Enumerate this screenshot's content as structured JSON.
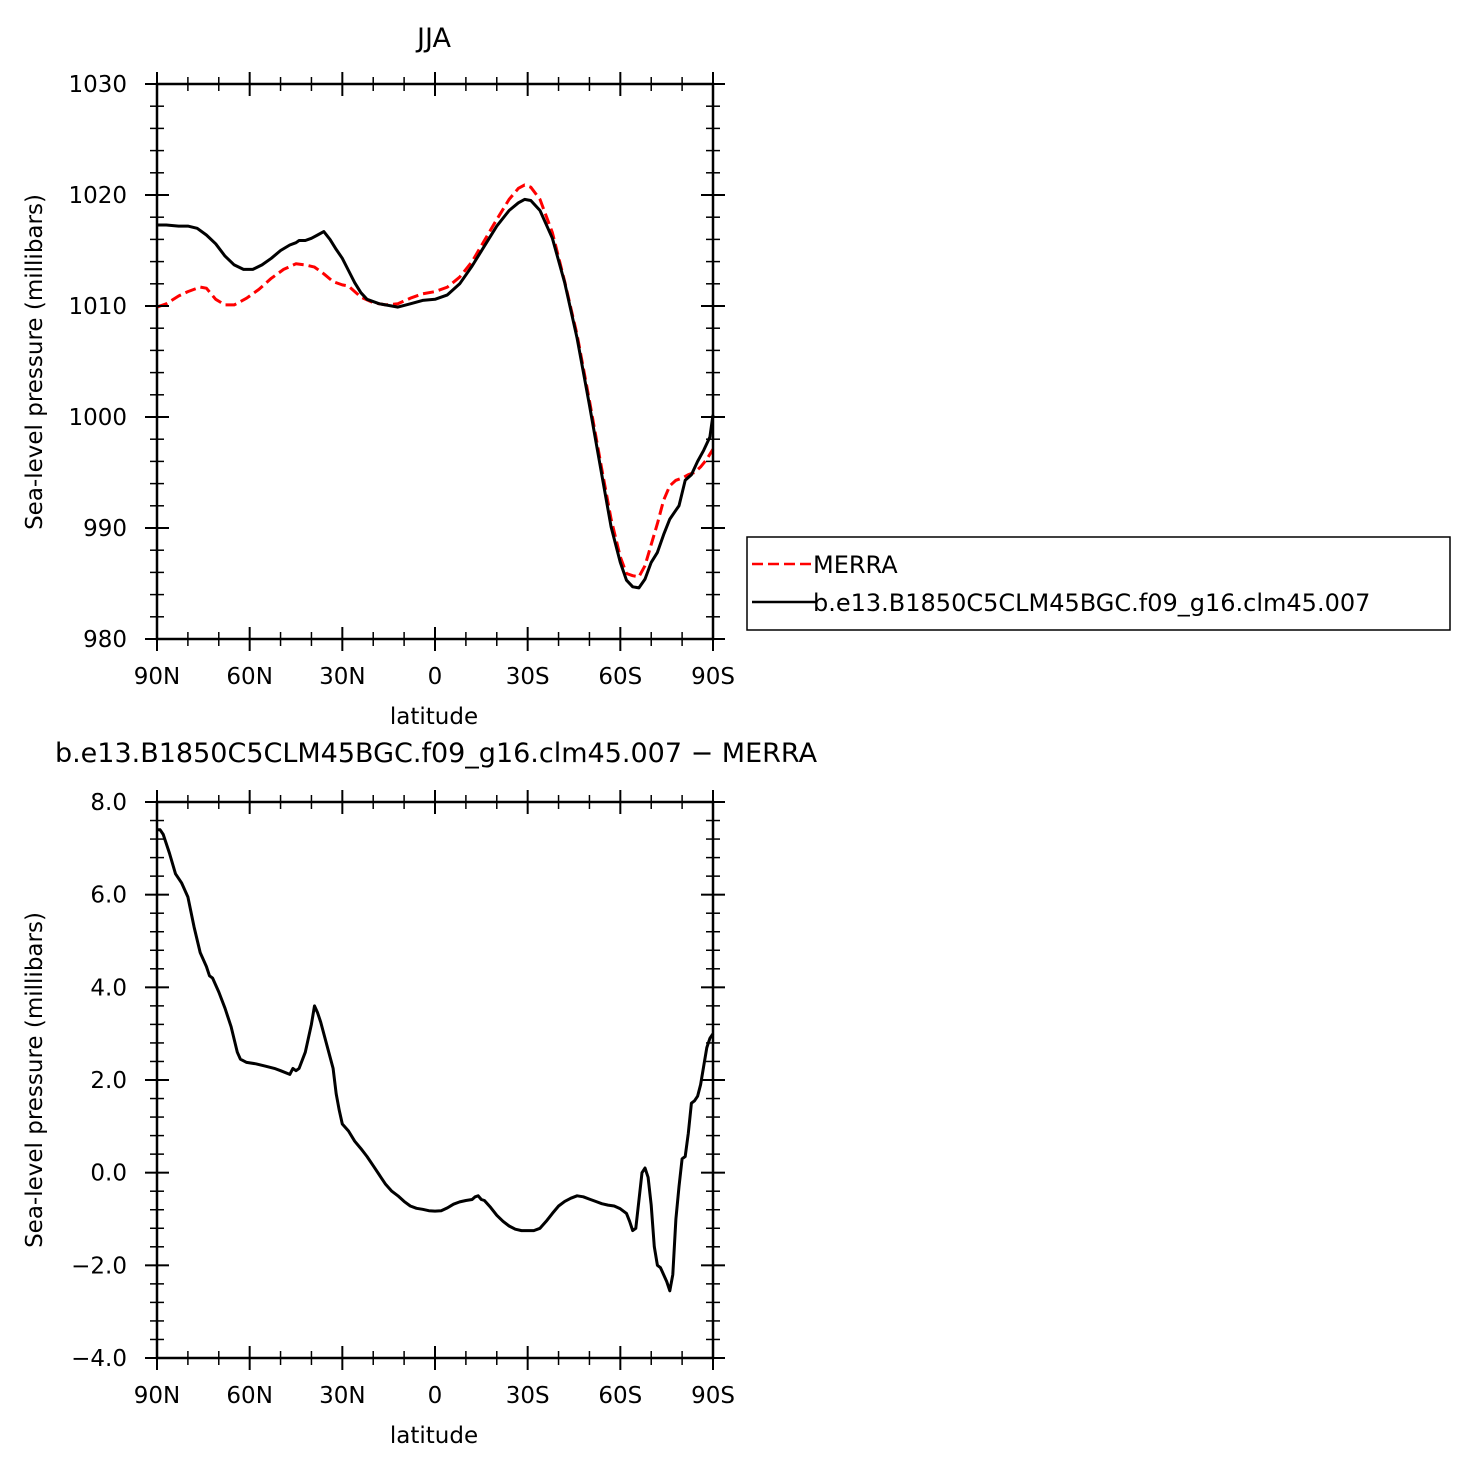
{
  "chart_data": [
    {
      "type": "line",
      "title": "JJA",
      "xlabel": "latitude",
      "ylabel": "Sea-level pressure (millibars)",
      "xlim": [
        90,
        -90
      ],
      "ylim": [
        980,
        1030
      ],
      "x_ticks": [
        {
          "value": 90,
          "label": "90N"
        },
        {
          "value": 60,
          "label": "60N"
        },
        {
          "value": 30,
          "label": "30N"
        },
        {
          "value": 0,
          "label": "0"
        },
        {
          "value": -30,
          "label": "30S"
        },
        {
          "value": -60,
          "label": "60S"
        },
        {
          "value": -90,
          "label": "90S"
        }
      ],
      "y_ticks": [
        {
          "value": 1030,
          "label": "1030"
        },
        {
          "value": 1020,
          "label": "1020"
        },
        {
          "value": 1010,
          "label": "1010"
        },
        {
          "value": 1000,
          "label": "1000"
        },
        {
          "value": 990,
          "label": "990"
        },
        {
          "value": 980,
          "label": "980"
        }
      ],
      "legend": "right",
      "series": [
        {
          "name": "MERRA",
          "color": "#ff0000",
          "dash": "dashed",
          "points": [
            [
              90,
              1009.9
            ],
            [
              87,
              1010.2
            ],
            [
              83,
              1010.9
            ],
            [
              80,
              1011.3
            ],
            [
              76,
              1011.7
            ],
            [
              74,
              1011.6
            ],
            [
              71,
              1010.6
            ],
            [
              68,
              1010.1
            ],
            [
              65,
              1010.1
            ],
            [
              61,
              1010.7
            ],
            [
              57,
              1011.5
            ],
            [
              53,
              1012.5
            ],
            [
              49,
              1013.3
            ],
            [
              45,
              1013.8
            ],
            [
              42,
              1013.7
            ],
            [
              39,
              1013.5
            ],
            [
              36,
              1012.9
            ],
            [
              33,
              1012.2
            ],
            [
              30,
              1011.9
            ],
            [
              28,
              1011.8
            ],
            [
              24,
              1010.8
            ],
            [
              20,
              1010.3
            ],
            [
              16,
              1010.1
            ],
            [
              12,
              1010.2
            ],
            [
              8,
              1010.7
            ],
            [
              4,
              1011.1
            ],
            [
              0,
              1011.3
            ],
            [
              -4,
              1011.7
            ],
            [
              -8,
              1012.6
            ],
            [
              -12,
              1014.0
            ],
            [
              -16,
              1015.9
            ],
            [
              -20,
              1017.8
            ],
            [
              -24,
              1019.6
            ],
            [
              -27,
              1020.6
            ],
            [
              -29,
              1020.9
            ],
            [
              -31,
              1020.7
            ],
            [
              -34,
              1019.6
            ],
            [
              -38,
              1016.6
            ],
            [
              -42,
              1012.2
            ],
            [
              -46,
              1007.4
            ],
            [
              -50,
              1001.5
            ],
            [
              -54,
              995.3
            ],
            [
              -57,
              990.8
            ],
            [
              -60,
              987.4
            ],
            [
              -62,
              985.9
            ],
            [
              -64,
              985.7
            ],
            [
              -66,
              985.6
            ],
            [
              -68,
              986.6
            ],
            [
              -70,
              988.5
            ],
            [
              -72,
              990.4
            ],
            [
              -74,
              992.5
            ],
            [
              -76,
              993.8
            ],
            [
              -78,
              994.3
            ],
            [
              -80,
              994.5
            ],
            [
              -82,
              994.8
            ],
            [
              -84,
              995.0
            ],
            [
              -86,
              995.5
            ],
            [
              -88,
              996.2
            ],
            [
              -90,
              997.1
            ]
          ]
        },
        {
          "name": "b.e13.B1850C5CLM45BGC.f09_g16.clm45.007",
          "color": "#000000",
          "dash": "solid",
          "points": [
            [
              90,
              1017.3
            ],
            [
              87,
              1017.3
            ],
            [
              83,
              1017.2
            ],
            [
              80,
              1017.2
            ],
            [
              77,
              1017.0
            ],
            [
              74,
              1016.4
            ],
            [
              71,
              1015.6
            ],
            [
              68,
              1014.5
            ],
            [
              65,
              1013.7
            ],
            [
              62,
              1013.3
            ],
            [
              59,
              1013.3
            ],
            [
              56,
              1013.7
            ],
            [
              53,
              1014.3
            ],
            [
              50,
              1015.0
            ],
            [
              47,
              1015.5
            ],
            [
              45,
              1015.7
            ],
            [
              44,
              1015.9
            ],
            [
              42,
              1015.9
            ],
            [
              40,
              1016.1
            ],
            [
              38,
              1016.4
            ],
            [
              36,
              1016.7
            ],
            [
              34,
              1016.0
            ],
            [
              32,
              1015.1
            ],
            [
              30,
              1014.3
            ],
            [
              28,
              1013.2
            ],
            [
              26,
              1012.1
            ],
            [
              24,
              1011.2
            ],
            [
              22,
              1010.6
            ],
            [
              18,
              1010.2
            ],
            [
              14,
              1010.0
            ],
            [
              12,
              1009.9
            ],
            [
              8,
              1010.2
            ],
            [
              4,
              1010.5
            ],
            [
              0,
              1010.6
            ],
            [
              -4,
              1011.0
            ],
            [
              -8,
              1012.0
            ],
            [
              -12,
              1013.6
            ],
            [
              -16,
              1015.4
            ],
            [
              -20,
              1017.2
            ],
            [
              -24,
              1018.6
            ],
            [
              -27,
              1019.3
            ],
            [
              -29,
              1019.6
            ],
            [
              -31,
              1019.5
            ],
            [
              -34,
              1018.6
            ],
            [
              -38,
              1016.1
            ],
            [
              -42,
              1012.1
            ],
            [
              -46,
              1007.1
            ],
            [
              -50,
              1001.1
            ],
            [
              -54,
              994.8
            ],
            [
              -57,
              990.1
            ],
            [
              -60,
              986.9
            ],
            [
              -62,
              985.3
            ],
            [
              -64,
              984.7
            ],
            [
              -66,
              984.6
            ],
            [
              -68,
              985.4
            ],
            [
              -70,
              986.9
            ],
            [
              -72,
              987.8
            ],
            [
              -74,
              989.4
            ],
            [
              -76,
              990.8
            ],
            [
              -78,
              991.6
            ],
            [
              -79,
              992.0
            ],
            [
              -81,
              994.3
            ],
            [
              -83,
              994.8
            ],
            [
              -85,
              996.0
            ],
            [
              -87,
              997.0
            ],
            [
              -89,
              998.2
            ],
            [
              -90,
              1000.2
            ]
          ]
        }
      ]
    },
    {
      "type": "line",
      "title": "b.e13.B1850C5CLM45BGC.f09_g16.clm45.007 − MERRA",
      "xlabel": "latitude",
      "ylabel": "Sea-level pressure (millibars)",
      "xlim": [
        90,
        -90
      ],
      "ylim": [
        -4.0,
        8.0
      ],
      "x_ticks": [
        {
          "value": 90,
          "label": "90N"
        },
        {
          "value": 60,
          "label": "60N"
        },
        {
          "value": 30,
          "label": "30N"
        },
        {
          "value": 0,
          "label": "0"
        },
        {
          "value": -30,
          "label": "30S"
        },
        {
          "value": -60,
          "label": "60S"
        },
        {
          "value": -90,
          "label": "90S"
        }
      ],
      "y_ticks": [
        {
          "value": 8.0,
          "label": "8.0"
        },
        {
          "value": 6.0,
          "label": "6.0"
        },
        {
          "value": 4.0,
          "label": "4.0"
        },
        {
          "value": 2.0,
          "label": "2.0"
        },
        {
          "value": 0.0,
          "label": "0.0"
        },
        {
          "value": -2.0,
          "label": "−2.0"
        },
        {
          "value": -4.0,
          "label": "−4.0"
        }
      ],
      "series": [
        {
          "color": "#000000",
          "dash": "solid",
          "points": [
            [
              90,
              7.4
            ],
            [
              89,
              7.4
            ],
            [
              88,
              7.3
            ],
            [
              86,
              6.9
            ],
            [
              84,
              6.45
            ],
            [
              82,
              6.25
            ],
            [
              80,
              5.95
            ],
            [
              78,
              5.3
            ],
            [
              76,
              4.75
            ],
            [
              74,
              4.45
            ],
            [
              73,
              4.25
            ],
            [
              72,
              4.2
            ],
            [
              70,
              3.9
            ],
            [
              68,
              3.55
            ],
            [
              66,
              3.15
            ],
            [
              64,
              2.6
            ],
            [
              63,
              2.45
            ],
            [
              61,
              2.38
            ],
            [
              58,
              2.35
            ],
            [
              55,
              2.3
            ],
            [
              52,
              2.25
            ],
            [
              50,
              2.2
            ],
            [
              47,
              2.12
            ],
            [
              46,
              2.25
            ],
            [
              45,
              2.2
            ],
            [
              44,
              2.25
            ],
            [
              42,
              2.6
            ],
            [
              40,
              3.2
            ],
            [
              39,
              3.6
            ],
            [
              38,
              3.45
            ],
            [
              37,
              3.25
            ],
            [
              35,
              2.75
            ],
            [
              33,
              2.25
            ],
            [
              32,
              1.7
            ],
            [
              31,
              1.35
            ],
            [
              30,
              1.05
            ],
            [
              28,
              0.9
            ],
            [
              26,
              0.68
            ],
            [
              24,
              0.52
            ],
            [
              22,
              0.35
            ],
            [
              20,
              0.15
            ],
            [
              18,
              -0.05
            ],
            [
              16,
              -0.25
            ],
            [
              14,
              -0.4
            ],
            [
              12,
              -0.5
            ],
            [
              10,
              -0.62
            ],
            [
              8,
              -0.72
            ],
            [
              6,
              -0.77
            ],
            [
              4,
              -0.79
            ],
            [
              2,
              -0.82
            ],
            [
              0,
              -0.83
            ],
            [
              -2,
              -0.82
            ],
            [
              -4,
              -0.76
            ],
            [
              -6,
              -0.68
            ],
            [
              -8,
              -0.63
            ],
            [
              -10,
              -0.6
            ],
            [
              -12,
              -0.58
            ],
            [
              -13,
              -0.52
            ],
            [
              -14,
              -0.5
            ],
            [
              -15,
              -0.58
            ],
            [
              -16,
              -0.6
            ],
            [
              -18,
              -0.75
            ],
            [
              -20,
              -0.92
            ],
            [
              -22,
              -1.05
            ],
            [
              -24,
              -1.15
            ],
            [
              -26,
              -1.22
            ],
            [
              -28,
              -1.25
            ],
            [
              -30,
              -1.25
            ],
            [
              -32,
              -1.25
            ],
            [
              -34,
              -1.2
            ],
            [
              -36,
              -1.05
            ],
            [
              -38,
              -0.88
            ],
            [
              -40,
              -0.72
            ],
            [
              -42,
              -0.62
            ],
            [
              -44,
              -0.55
            ],
            [
              -46,
              -0.5
            ],
            [
              -48,
              -0.52
            ],
            [
              -50,
              -0.57
            ],
            [
              -52,
              -0.62
            ],
            [
              -54,
              -0.67
            ],
            [
              -56,
              -0.7
            ],
            [
              -58,
              -0.72
            ],
            [
              -60,
              -0.78
            ],
            [
              -62,
              -0.88
            ],
            [
              -63,
              -1.05
            ],
            [
              -64,
              -1.25
            ],
            [
              -65,
              -1.2
            ],
            [
              -66,
              -0.6
            ],
            [
              -67,
              0.0
            ],
            [
              -68,
              0.1
            ],
            [
              -69,
              -0.1
            ],
            [
              -70,
              -0.7
            ],
            [
              -71,
              -1.6
            ],
            [
              -72,
              -2.0
            ],
            [
              -73,
              -2.05
            ],
            [
              -74,
              -2.2
            ],
            [
              -75,
              -2.35
            ],
            [
              -76,
              -2.55
            ],
            [
              -77,
              -2.2
            ],
            [
              -78,
              -1.0
            ],
            [
              -79,
              -0.3
            ],
            [
              -80,
              0.3
            ],
            [
              -81,
              0.35
            ],
            [
              -82,
              0.85
            ],
            [
              -83,
              1.5
            ],
            [
              -84,
              1.55
            ],
            [
              -85,
              1.65
            ],
            [
              -86,
              1.9
            ],
            [
              -87,
              2.3
            ],
            [
              -88,
              2.7
            ],
            [
              -89,
              2.9
            ],
            [
              -90,
              3.0
            ]
          ]
        }
      ]
    }
  ]
}
